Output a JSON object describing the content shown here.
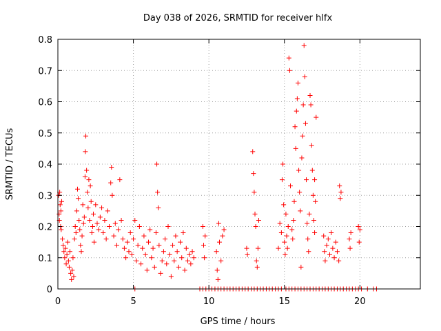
{
  "chart_data": {
    "type": "scatter",
    "title": "Day 038 of 2026, SRMTID for receiver hlfx",
    "xlabel": "GPS time / hours",
    "ylabel": "SRMTID / TECUs",
    "xlim": [
      0,
      24
    ],
    "ylim": [
      0,
      0.8
    ],
    "xticks": [
      0,
      5,
      10,
      15,
      20
    ],
    "yticks": [
      0,
      0.1,
      0.2,
      0.3,
      0.4,
      0.5,
      0.6,
      0.7,
      0.8
    ],
    "xtick_labels": [
      "0",
      "5",
      "10",
      "15",
      "20"
    ],
    "ytick_labels": [
      "0",
      "0.1",
      "0.2",
      "0.3",
      "0.4",
      "0.5",
      "0.6",
      "0.7",
      "0.8"
    ],
    "grid": true,
    "marker": "+",
    "color": "#ff0000",
    "series": [
      {
        "name": "SRMTID",
        "points": [
          [
            0.05,
            0.3
          ],
          [
            0.08,
            0.24
          ],
          [
            0.1,
            0.22
          ],
          [
            0.12,
            0.31
          ],
          [
            0.15,
            0.27
          ],
          [
            0.18,
            0.2
          ],
          [
            0.2,
            0.25
          ],
          [
            0.22,
            0.19
          ],
          [
            0.25,
            0.28
          ],
          [
            0.3,
            0.16
          ],
          [
            0.35,
            0.14
          ],
          [
            0.4,
            0.12
          ],
          [
            0.45,
            0.1
          ],
          [
            0.5,
            0.13
          ],
          [
            0.55,
            0.08
          ],
          [
            0.6,
            0.11
          ],
          [
            0.65,
            0.15
          ],
          [
            0.7,
            0.09
          ],
          [
            0.75,
            0.07
          ],
          [
            0.8,
            0.12
          ],
          [
            0.85,
            0.05
          ],
          [
            0.9,
            0.03
          ],
          [
            0.95,
            0.06
          ],
          [
            1.0,
            0.1
          ],
          [
            1.05,
            0.04
          ],
          [
            1.1,
            0.16
          ],
          [
            1.15,
            0.2
          ],
          [
            1.2,
            0.18
          ],
          [
            1.25,
            0.25
          ],
          [
            1.3,
            0.32
          ],
          [
            1.35,
            0.29
          ],
          [
            1.4,
            0.22
          ],
          [
            1.45,
            0.19
          ],
          [
            1.5,
            0.14
          ],
          [
            1.55,
            0.12
          ],
          [
            1.6,
            0.17
          ],
          [
            1.65,
            0.27
          ],
          [
            1.7,
            0.21
          ],
          [
            1.75,
            0.23
          ],
          [
            1.8,
            0.36
          ],
          [
            1.82,
            0.44
          ],
          [
            1.85,
            0.49
          ],
          [
            1.9,
            0.38
          ],
          [
            1.95,
            0.31
          ],
          [
            2.0,
            0.26
          ],
          [
            2.05,
            0.35
          ],
          [
            2.1,
            0.22
          ],
          [
            2.15,
            0.33
          ],
          [
            2.2,
            0.28
          ],
          [
            2.25,
            0.18
          ],
          [
            2.3,
            0.2
          ],
          [
            2.35,
            0.24
          ],
          [
            2.4,
            0.15
          ],
          [
            2.5,
            0.27
          ],
          [
            2.6,
            0.21
          ],
          [
            2.7,
            0.19
          ],
          [
            2.8,
            0.23
          ],
          [
            2.9,
            0.26
          ],
          [
            3.0,
            0.18
          ],
          [
            3.1,
            0.22
          ],
          [
            3.2,
            0.16
          ],
          [
            3.3,
            0.25
          ],
          [
            3.4,
            0.2
          ],
          [
            3.5,
            0.34
          ],
          [
            3.55,
            0.39
          ],
          [
            3.6,
            0.3
          ],
          [
            3.7,
            0.17
          ],
          [
            3.8,
            0.21
          ],
          [
            3.9,
            0.14
          ],
          [
            4.0,
            0.19
          ],
          [
            4.1,
            0.35
          ],
          [
            4.2,
            0.22
          ],
          [
            4.3,
            0.16
          ],
          [
            4.4,
            0.13
          ],
          [
            4.5,
            0.1
          ],
          [
            4.6,
            0.15
          ],
          [
            4.7,
            0.12
          ],
          [
            4.8,
            0.18
          ],
          [
            4.9,
            0.11
          ],
          [
            5.0,
            0.16
          ],
          [
            5.1,
            0.22
          ],
          [
            5.2,
            0.09
          ],
          [
            5.3,
            0.14
          ],
          [
            5.4,
            0.2
          ],
          [
            5.5,
            0.08
          ],
          [
            5.6,
            0.13
          ],
          [
            5.7,
            0.17
          ],
          [
            5.8,
            0.11
          ],
          [
            5.9,
            0.06
          ],
          [
            6.0,
            0.15
          ],
          [
            6.1,
            0.19
          ],
          [
            6.2,
            0.1
          ],
          [
            6.3,
            0.13
          ],
          [
            6.4,
            0.07
          ],
          [
            6.5,
            0.18
          ],
          [
            6.55,
            0.4
          ],
          [
            6.6,
            0.31
          ],
          [
            6.65,
            0.26
          ],
          [
            6.7,
            0.14
          ],
          [
            6.8,
            0.05
          ],
          [
            6.9,
            0.09
          ],
          [
            7.0,
            0.12
          ],
          [
            7.1,
            0.16
          ],
          [
            7.2,
            0.08
          ],
          [
            7.3,
            0.2
          ],
          [
            7.4,
            0.11
          ],
          [
            7.5,
            0.04
          ],
          [
            7.6,
            0.14
          ],
          [
            7.7,
            0.09
          ],
          [
            7.8,
            0.17
          ],
          [
            7.9,
            0.12
          ],
          [
            8.0,
            0.07
          ],
          [
            8.1,
            0.15
          ],
          [
            8.2,
            0.1
          ],
          [
            8.3,
            0.18
          ],
          [
            8.4,
            0.06
          ],
          [
            8.5,
            0.13
          ],
          [
            8.6,
            0.09
          ],
          [
            8.7,
            0.11
          ],
          [
            8.8,
            0.08
          ],
          [
            8.9,
            0.12
          ],
          [
            9.0,
            0.1
          ],
          [
            9.6,
            0.2
          ],
          [
            9.65,
            0.14
          ],
          [
            9.7,
            0.1
          ],
          [
            9.75,
            0.17
          ],
          [
            10.5,
            0.12
          ],
          [
            10.55,
            0.06
          ],
          [
            10.6,
            0.03
          ],
          [
            10.65,
            0.21
          ],
          [
            10.7,
            0.15
          ],
          [
            10.8,
            0.09
          ],
          [
            10.9,
            0.17
          ],
          [
            11.0,
            0.19
          ],
          [
            12.5,
            0.13
          ],
          [
            12.55,
            0.11
          ],
          [
            12.9,
            0.44
          ],
          [
            12.95,
            0.37
          ],
          [
            13.0,
            0.31
          ],
          [
            13.05,
            0.24
          ],
          [
            13.1,
            0.2
          ],
          [
            13.15,
            0.09
          ],
          [
            13.2,
            0.07
          ],
          [
            13.25,
            0.13
          ],
          [
            13.3,
            0.22
          ],
          [
            14.6,
            0.13
          ],
          [
            14.7,
            0.21
          ],
          [
            14.8,
            0.18
          ],
          [
            14.85,
            0.35
          ],
          [
            14.9,
            0.4
          ],
          [
            14.95,
            0.27
          ],
          [
            15.0,
            0.15
          ],
          [
            15.05,
            0.11
          ],
          [
            15.1,
            0.24
          ],
          [
            15.15,
            0.17
          ],
          [
            15.2,
            0.13
          ],
          [
            15.25,
            0.2
          ],
          [
            15.3,
            0.74
          ],
          [
            15.35,
            0.7
          ],
          [
            15.4,
            0.33
          ],
          [
            15.5,
            0.19
          ],
          [
            15.55,
            0.16
          ],
          [
            15.6,
            0.22
          ],
          [
            15.65,
            0.28
          ],
          [
            15.7,
            0.52
          ],
          [
            15.75,
            0.45
          ],
          [
            15.8,
            0.57
          ],
          [
            15.85,
            0.61
          ],
          [
            15.9,
            0.66
          ],
          [
            15.95,
            0.38
          ],
          [
            16.0,
            0.31
          ],
          [
            16.05,
            0.25
          ],
          [
            16.1,
            0.07
          ],
          [
            16.15,
            0.42
          ],
          [
            16.2,
            0.49
          ],
          [
            16.25,
            0.59
          ],
          [
            16.3,
            0.78
          ],
          [
            16.35,
            0.68
          ],
          [
            16.4,
            0.53
          ],
          [
            16.45,
            0.35
          ],
          [
            16.5,
            0.21
          ],
          [
            16.55,
            0.16
          ],
          [
            16.6,
            0.12
          ],
          [
            16.65,
            0.24
          ],
          [
            16.7,
            0.62
          ],
          [
            16.75,
            0.59
          ],
          [
            16.8,
            0.46
          ],
          [
            16.85,
            0.38
          ],
          [
            16.9,
            0.3
          ],
          [
            16.95,
            0.22
          ],
          [
            17.0,
            0.18
          ],
          [
            17.0,
            0.35
          ],
          [
            17.05,
            0.28
          ],
          [
            17.1,
            0.55
          ],
          [
            17.6,
            0.17
          ],
          [
            17.65,
            0.12
          ],
          [
            17.7,
            0.09
          ],
          [
            17.8,
            0.14
          ],
          [
            17.9,
            0.16
          ],
          [
            18.0,
            0.11
          ],
          [
            18.1,
            0.18
          ],
          [
            18.2,
            0.13
          ],
          [
            18.3,
            0.1
          ],
          [
            18.4,
            0.15
          ],
          [
            18.5,
            0.12
          ],
          [
            18.6,
            0.09
          ],
          [
            18.65,
            0.33
          ],
          [
            18.7,
            0.29
          ],
          [
            18.75,
            0.31
          ],
          [
            19.3,
            0.16
          ],
          [
            19.35,
            0.13
          ],
          [
            19.4,
            0.18
          ],
          [
            19.9,
            0.2
          ],
          [
            19.95,
            0.15
          ],
          [
            20.0,
            0.19
          ],
          [
            9.4,
            0.0
          ],
          [
            9.6,
            0.0
          ],
          [
            9.8,
            0.0
          ],
          [
            10.0,
            0.0
          ],
          [
            10.2,
            0.0
          ],
          [
            10.4,
            0.0
          ],
          [
            10.6,
            0.0
          ],
          [
            10.8,
            0.0
          ],
          [
            11.0,
            0.0
          ],
          [
            11.2,
            0.0
          ],
          [
            11.4,
            0.0
          ],
          [
            11.6,
            0.0
          ],
          [
            11.8,
            0.0
          ],
          [
            12.0,
            0.0
          ],
          [
            12.2,
            0.0
          ],
          [
            12.4,
            0.0
          ],
          [
            12.6,
            0.0
          ],
          [
            12.8,
            0.0
          ],
          [
            13.0,
            0.0
          ],
          [
            13.2,
            0.0
          ],
          [
            13.4,
            0.0
          ],
          [
            13.6,
            0.0
          ],
          [
            13.8,
            0.0
          ],
          [
            14.0,
            0.0
          ],
          [
            14.2,
            0.0
          ],
          [
            14.4,
            0.0
          ],
          [
            14.6,
            0.0
          ],
          [
            14.8,
            0.0
          ],
          [
            15.1,
            0.0
          ],
          [
            15.3,
            0.0
          ],
          [
            15.5,
            0.0
          ],
          [
            15.7,
            0.0
          ],
          [
            15.9,
            0.0
          ],
          [
            16.1,
            0.0
          ],
          [
            16.3,
            0.0
          ],
          [
            16.5,
            0.0
          ],
          [
            16.7,
            0.0
          ],
          [
            16.9,
            0.0
          ],
          [
            17.1,
            0.0
          ],
          [
            17.3,
            0.0
          ],
          [
            17.5,
            0.0
          ],
          [
            17.7,
            0.0
          ],
          [
            17.9,
            0.0
          ],
          [
            18.1,
            0.0
          ],
          [
            18.3,
            0.0
          ],
          [
            18.5,
            0.0
          ],
          [
            18.7,
            0.0
          ],
          [
            18.9,
            0.0
          ],
          [
            19.1,
            0.0
          ],
          [
            19.3,
            0.0
          ],
          [
            19.5,
            0.0
          ],
          [
            19.7,
            0.0
          ],
          [
            19.9,
            0.0
          ],
          [
            20.1,
            0.0
          ],
          [
            20.5,
            0.0
          ],
          [
            20.9,
            0.0
          ],
          [
            21.1,
            0.0
          ],
          [
            5.1,
            0.0
          ]
        ]
      }
    ]
  }
}
